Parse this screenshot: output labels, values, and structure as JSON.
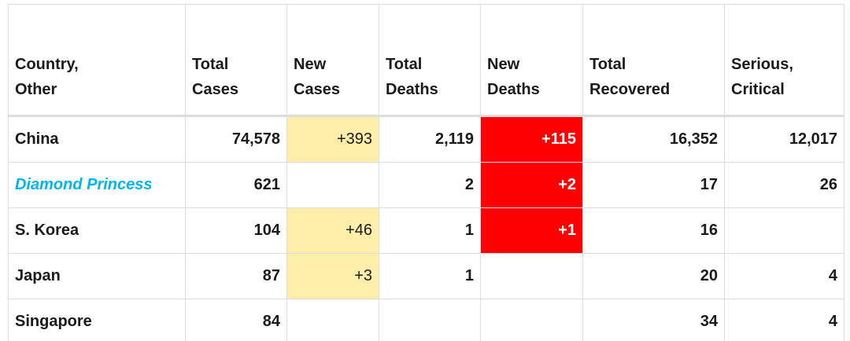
{
  "colors": {
    "new_cases_bg": "#ffeeaa",
    "new_deaths_bg": "#ff0000",
    "ship_link": "#00b5f0",
    "border": "#dddddd"
  },
  "table": {
    "headers": [
      [
        "Country,",
        "Other"
      ],
      [
        "Total",
        "Cases"
      ],
      [
        "New",
        "Cases"
      ],
      [
        "Total",
        "Deaths"
      ],
      [
        "New",
        "Deaths"
      ],
      [
        "Total",
        "Recovered"
      ],
      [
        "Serious,",
        "Critical"
      ]
    ],
    "rows": [
      {
        "country": "China",
        "total_cases": "74,578",
        "new_cases": "+393",
        "total_deaths": "2,119",
        "new_deaths": "+115",
        "total_recovered": "16,352",
        "serious_critical": "12,017"
      },
      {
        "country": "Diamond Princess",
        "total_cases": "621",
        "new_cases": "",
        "total_deaths": "2",
        "new_deaths": "+2",
        "total_recovered": "17",
        "serious_critical": "26"
      },
      {
        "country": "S. Korea",
        "total_cases": "104",
        "new_cases": "+46",
        "total_deaths": "1",
        "new_deaths": "+1",
        "total_recovered": "16",
        "serious_critical": ""
      },
      {
        "country": "Japan",
        "total_cases": "87",
        "new_cases": "+3",
        "total_deaths": "1",
        "new_deaths": "",
        "total_recovered": "20",
        "serious_critical": "4"
      },
      {
        "country": "Singapore",
        "total_cases": "84",
        "new_cases": "",
        "total_deaths": "",
        "new_deaths": "",
        "total_recovered": "34",
        "serious_critical": "4"
      }
    ]
  }
}
